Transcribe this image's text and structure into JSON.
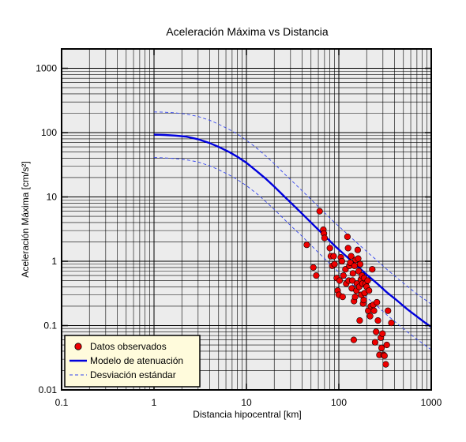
{
  "chart_data": {
    "type": "scatter",
    "title": "Aceleración Máxima vs Distancia",
    "xlabel": "Distancia hipocentral [km]",
    "ylabel": "Aceleración Máxima [cm/s²]",
    "xscale": "log",
    "yscale": "log",
    "xlim": [
      0.1,
      1000
    ],
    "ylim": [
      0.01,
      2000
    ],
    "grid": true,
    "legend_position": "bottom-left",
    "x_tick_labels": [
      "0.1",
      "1",
      "10",
      "100",
      "1000"
    ],
    "y_tick_labels": [
      "0.01",
      "0.1",
      "1",
      "10",
      "100",
      "1000"
    ],
    "colors": {
      "plot_background": "#ececec",
      "grid": "#000000",
      "points": "#ee0000",
      "model": "#0000dd",
      "deviation": "#3344ee",
      "legend_background": "#fffbdc"
    },
    "series": [
      {
        "name": "Datos observados",
        "kind": "scatter",
        "points": [
          [
            45,
            1.8
          ],
          [
            53,
            0.8
          ],
          [
            57,
            0.6
          ],
          [
            62,
            6.0
          ],
          [
            68,
            3.1
          ],
          [
            69,
            2.7
          ],
          [
            70,
            2.3
          ],
          [
            80,
            1.6
          ],
          [
            82,
            1.2
          ],
          [
            85,
            0.85
          ],
          [
            88,
            1.2
          ],
          [
            90,
            0.9
          ],
          [
            95,
            0.55
          ],
          [
            97,
            0.35
          ],
          [
            100,
            0.3
          ],
          [
            102,
            0.5
          ],
          [
            105,
            1.15
          ],
          [
            108,
            1.0
          ],
          [
            110,
            0.28
          ],
          [
            112,
            0.6
          ],
          [
            118,
            0.75
          ],
          [
            120,
            0.45
          ],
          [
            124,
            2.4
          ],
          [
            126,
            1.6
          ],
          [
            128,
            0.5
          ],
          [
            130,
            0.85
          ],
          [
            133,
            0.95
          ],
          [
            136,
            1.2
          ],
          [
            138,
            0.38
          ],
          [
            140,
            0.5
          ],
          [
            142,
            0.65
          ],
          [
            145,
            0.06
          ],
          [
            146,
            0.24
          ],
          [
            148,
            0.85
          ],
          [
            150,
            0.28
          ],
          [
            152,
            1.05
          ],
          [
            155,
            0.35
          ],
          [
            157,
            0.45
          ],
          [
            160,
            1.5
          ],
          [
            162,
            1.1
          ],
          [
            164,
            0.7
          ],
          [
            166,
            0.4
          ],
          [
            168,
            0.12
          ],
          [
            170,
            0.9
          ],
          [
            173,
            0.52
          ],
          [
            175,
            0.3
          ],
          [
            178,
            0.6
          ],
          [
            180,
            0.45
          ],
          [
            183,
            0.22
          ],
          [
            186,
            0.25
          ],
          [
            188,
            0.55
          ],
          [
            190,
            0.32
          ],
          [
            195,
            0.45
          ],
          [
            200,
            0.4
          ],
          [
            205,
            0.5
          ],
          [
            208,
            0.17
          ],
          [
            212,
            0.35
          ],
          [
            218,
            0.14
          ],
          [
            222,
            0.2
          ],
          [
            230,
            0.75
          ],
          [
            236,
            0.21
          ],
          [
            240,
            0.17
          ],
          [
            247,
            0.055
          ],
          [
            253,
            0.08
          ],
          [
            258,
            0.23
          ],
          [
            265,
            0.12
          ],
          [
            275,
            0.035
          ],
          [
            285,
            0.065
          ],
          [
            290,
            0.045
          ],
          [
            297,
            0.075
          ],
          [
            305,
            0.035
          ],
          [
            312,
            0.034
          ],
          [
            322,
            0.025
          ],
          [
            330,
            0.05
          ],
          [
            340,
            0.17
          ],
          [
            370,
            0.11
          ]
        ]
      },
      {
        "name": "Modelo de atenuación",
        "kind": "line",
        "x": [
          1,
          1.3,
          1.7,
          2.2,
          3,
          4,
          5,
          6.5,
          8,
          10,
          13,
          16,
          20,
          26,
          32,
          40,
          55,
          70,
          90,
          120,
          150,
          200,
          260,
          330,
          420,
          550,
          700,
          850,
          1000
        ],
        "y": [
          93,
          92,
          90,
          87,
          79,
          69,
          60,
          50,
          42,
          34,
          25,
          19.5,
          14.5,
          10,
          7.5,
          5.5,
          3.5,
          2.5,
          1.75,
          1.2,
          0.9,
          0.62,
          0.45,
          0.33,
          0.25,
          0.18,
          0.138,
          0.112,
          0.095
        ]
      },
      {
        "name": "Desviación estándar",
        "kind": "dashed-line",
        "upper": {
          "x": [
            1,
            1.3,
            1.7,
            2.2,
            3,
            4,
            5,
            6.5,
            8,
            10,
            13,
            16,
            20,
            26,
            32,
            40,
            55,
            70,
            90,
            120,
            150,
            200,
            260,
            330,
            420,
            550,
            700,
            850,
            1000
          ],
          "y": [
            210,
            208,
            203,
            195,
            178,
            156,
            135,
            112,
            95,
            76,
            57,
            44,
            33,
            22.5,
            17,
            12.5,
            8,
            5.7,
            4,
            2.75,
            2.05,
            1.42,
            1.02,
            0.75,
            0.56,
            0.41,
            0.31,
            0.255,
            0.215
          ]
        },
        "lower": {
          "x": [
            1,
            1.3,
            1.7,
            2.2,
            3,
            4,
            5,
            6.5,
            8,
            10,
            13,
            16,
            20,
            26,
            32,
            40,
            55,
            70,
            90,
            120,
            150,
            200,
            260,
            330,
            420,
            550,
            700,
            850,
            1000
          ],
          "y": [
            41,
            40.5,
            39.5,
            38,
            35,
            30.5,
            26.5,
            22,
            18.5,
            15,
            11.2,
            8.6,
            6.4,
            4.4,
            3.3,
            2.45,
            1.55,
            1.1,
            0.78,
            0.53,
            0.4,
            0.275,
            0.2,
            0.147,
            0.11,
            0.08,
            0.061,
            0.05,
            0.042
          ]
        }
      }
    ],
    "legend": {
      "items": [
        {
          "label": "Datos observados",
          "symbol": "circle"
        },
        {
          "label": "Modelo de atenuación",
          "symbol": "line"
        },
        {
          "label": "Desviación estándar",
          "symbol": "dashed-line"
        }
      ]
    }
  }
}
